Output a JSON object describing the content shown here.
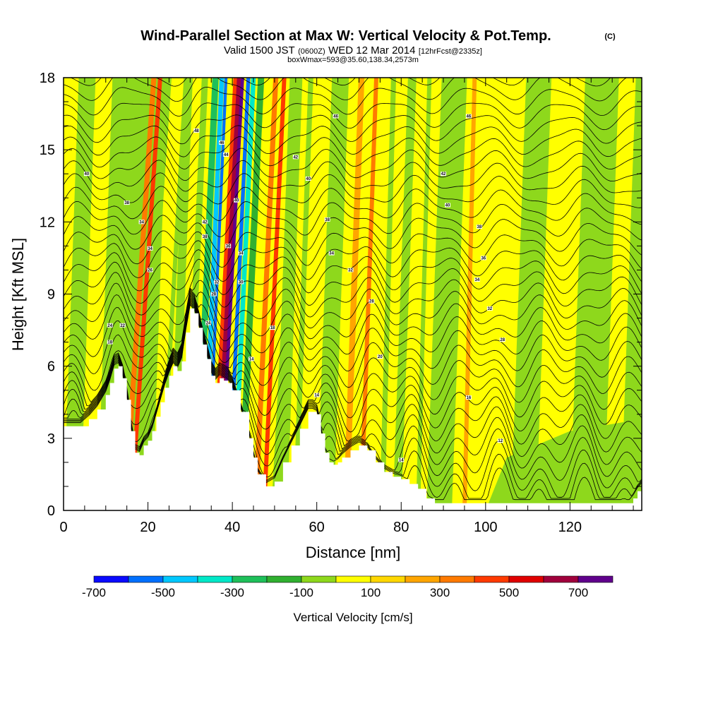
{
  "chart_data": {
    "type": "heatmap",
    "title": "Wind-Parallel Section at Max W: Vertical Velocity & Pot.Temp.",
    "title_mark": "(C)",
    "subtitle_prefix": "Valid 1500 JST",
    "subtitle_small1": "(0600Z)",
    "subtitle_mid": "WED 12 Mar 2014",
    "subtitle_small2": "[12hrFcst@2335z]",
    "subtitle2": "boxWmax=593@35.60,138.34,2573m",
    "xlabel": "Distance [nm]",
    "ylabel": "Height [Kft MSL]",
    "xlim": [
      0,
      137
    ],
    "ylim": [
      0,
      18
    ],
    "xticks": [
      0,
      20,
      40,
      60,
      80,
      100,
      120
    ],
    "yticks": [
      0,
      3,
      6,
      9,
      12,
      15,
      18
    ],
    "grid": false,
    "colorbar": {
      "title": "Vertical Velocity [cm/s]",
      "labels": [
        "-700",
        "-500",
        "-300",
        "-100",
        "100",
        "300",
        "500",
        "700"
      ],
      "colors": [
        "#0a0aff",
        "#0070ff",
        "#00c8ff",
        "#00e8c8",
        "#1ec05a",
        "#30b030",
        "#8ed81c",
        "#ffff00",
        "#ffd700",
        "#ffa500",
        "#ff7a00",
        "#ff3a00",
        "#e00000",
        "#a0003c",
        "#60008c"
      ]
    },
    "terrain_profile": {
      "x": [
        0,
        4,
        6,
        8,
        10,
        11,
        12,
        13,
        14,
        15,
        16,
        17,
        18,
        19,
        20,
        21,
        22,
        23,
        24,
        25,
        26,
        27,
        28,
        29,
        30,
        31,
        32,
        33,
        34,
        35,
        36,
        37,
        38,
        39,
        40,
        42,
        44,
        45,
        46,
        48,
        50,
        52,
        54,
        56,
        58,
        59,
        60,
        61,
        62,
        63,
        64,
        65,
        66,
        68,
        70,
        72,
        74,
        76,
        78,
        80,
        82,
        84,
        86,
        88,
        90,
        92,
        94,
        96,
        98,
        100,
        102,
        104,
        106,
        108,
        110,
        112,
        114,
        116,
        118,
        120,
        122,
        124,
        126,
        128,
        130,
        132,
        134,
        135,
        136,
        137
      ],
      "height": [
        3.5,
        3.5,
        3.8,
        4.2,
        4.8,
        5.3,
        5.9,
        6.0,
        5.5,
        4.6,
        3.3,
        2.4,
        2.3,
        2.7,
        2.9,
        3.3,
        3.9,
        4.5,
        5.1,
        5.6,
        6.0,
        5.8,
        6.2,
        7.4,
        8.4,
        8.2,
        7.6,
        6.9,
        6.3,
        5.6,
        5.3,
        5.5,
        5.4,
        5.3,
        5.0,
        4.1,
        3.0,
        2.2,
        1.5,
        1.0,
        1.2,
        2.0,
        2.7,
        3.4,
        4.1,
        4.1,
        4.0,
        3.2,
        2.4,
        2.0,
        1.9,
        2.0,
        2.2,
        2.5,
        2.7,
        2.5,
        2.0,
        1.6,
        1.4,
        1.3,
        1.1,
        0.9,
        0.5,
        0.3,
        0.3,
        0.3,
        0.3,
        0.3,
        0.3,
        0.3,
        0.3,
        0.3,
        0.3,
        0.3,
        0.3,
        0.3,
        0.3,
        0.3,
        0.3,
        0.3,
        0.3,
        0.3,
        0.3,
        0.3,
        0.3,
        0.3,
        0.3,
        0.5,
        0.8,
        1.0
      ]
    },
    "velocity_bands": [
      {
        "x": 12,
        "width": 1.2,
        "slope": 2.3,
        "value": -150
      },
      {
        "x": 14.5,
        "width": 1.2,
        "slope": 2.3,
        "value": 250
      },
      {
        "x": 16,
        "width": 1.0,
        "slope": 2.3,
        "value": 350
      },
      {
        "x": 18,
        "width": 1.4,
        "slope": 2.3,
        "value": -150
      },
      {
        "x": 23,
        "width": 1.0,
        "slope": 2.0,
        "value": -150
      },
      {
        "x": 29,
        "width": 1.5,
        "slope": 1.5,
        "value": -200
      },
      {
        "x": 31.5,
        "width": 1.5,
        "slope": 1.5,
        "value": -350
      },
      {
        "x": 33,
        "width": 1.1,
        "slope": 1.5,
        "value": -550
      },
      {
        "x": 34,
        "width": 0.7,
        "slope": 1.5,
        "value": -700
      },
      {
        "x": 35.3,
        "width": 0.9,
        "slope": 1.8,
        "value": 300
      },
      {
        "x": 36.2,
        "width": 1.0,
        "slope": 1.8,
        "value": 550
      },
      {
        "x": 37,
        "width": 0.8,
        "slope": 1.8,
        "value": 650
      },
      {
        "x": 39,
        "width": 0.9,
        "slope": 1.6,
        "value": -650
      },
      {
        "x": 40.2,
        "width": 1.1,
        "slope": 1.6,
        "value": -450
      },
      {
        "x": 42,
        "width": 1.5,
        "slope": 1.6,
        "value": -250
      },
      {
        "x": 45.5,
        "width": 1.2,
        "slope": 1.6,
        "value": 250
      },
      {
        "x": 47.5,
        "width": 1.0,
        "slope": 1.6,
        "value": 350
      },
      {
        "x": 50,
        "width": 1.5,
        "slope": 1.8,
        "value": -150
      },
      {
        "x": 55,
        "width": 1.2,
        "slope": 1.2,
        "value": -150
      },
      {
        "x": 62,
        "width": 1.0,
        "slope": 1.2,
        "value": -150
      },
      {
        "x": 67,
        "width": 1.4,
        "slope": 1.2,
        "value": 150
      },
      {
        "x": 70.5,
        "width": 1.0,
        "slope": 1.2,
        "value": 250
      },
      {
        "x": 75.5,
        "width": 1.2,
        "slope": 0.9,
        "value": -200
      },
      {
        "x": 84,
        "width": 1.0,
        "slope": 0.9,
        "value": -150
      },
      {
        "x": 95,
        "width": 1.0,
        "slope": 0.8,
        "value": 150
      }
    ],
    "contour_labels": [
      {
        "x": 5.5,
        "y": 14.0,
        "text": "40"
      },
      {
        "x": 15,
        "y": 12.8,
        "text": "38"
      },
      {
        "x": 18.5,
        "y": 12.0,
        "text": "34"
      },
      {
        "x": 20.5,
        "y": 10.9,
        "text": "34"
      },
      {
        "x": 20.5,
        "y": 10.0,
        "text": "26"
      },
      {
        "x": 11,
        "y": 7.7,
        "text": "24"
      },
      {
        "x": 14,
        "y": 7.7,
        "text": "22"
      },
      {
        "x": 11,
        "y": 7.0,
        "text": "18"
      },
      {
        "x": 31.5,
        "y": 15.8,
        "text": "48"
      },
      {
        "x": 33.5,
        "y": 12.0,
        "text": "42"
      },
      {
        "x": 33.5,
        "y": 11.4,
        "text": "38"
      },
      {
        "x": 37.5,
        "y": 15.3,
        "text": "46"
      },
      {
        "x": 38.5,
        "y": 14.8,
        "text": "44"
      },
      {
        "x": 39,
        "y": 11.0,
        "text": "36"
      },
      {
        "x": 41,
        "y": 12.9,
        "text": "40"
      },
      {
        "x": 42,
        "y": 10.7,
        "text": "34"
      },
      {
        "x": 42,
        "y": 9.5,
        "text": "30"
      },
      {
        "x": 36.3,
        "y": 9.5,
        "text": "32"
      },
      {
        "x": 35.6,
        "y": 9.0,
        "text": "28"
      },
      {
        "x": 34.3,
        "y": 7.8,
        "text": "24"
      },
      {
        "x": 49.5,
        "y": 7.6,
        "text": "18"
      },
      {
        "x": 44.5,
        "y": 6.3,
        "text": "14"
      },
      {
        "x": 55,
        "y": 14.7,
        "text": "42"
      },
      {
        "x": 58,
        "y": 13.8,
        "text": "40"
      },
      {
        "x": 62.5,
        "y": 12.1,
        "text": "38"
      },
      {
        "x": 63.5,
        "y": 10.7,
        "text": "34"
      },
      {
        "x": 68,
        "y": 10.0,
        "text": "32"
      },
      {
        "x": 73,
        "y": 8.7,
        "text": "28"
      },
      {
        "x": 75,
        "y": 6.4,
        "text": "20"
      },
      {
        "x": 60,
        "y": 4.8,
        "text": "14"
      },
      {
        "x": 64.5,
        "y": 16.4,
        "text": "46"
      },
      {
        "x": 96,
        "y": 16.4,
        "text": "46"
      },
      {
        "x": 90,
        "y": 14.0,
        "text": "42"
      },
      {
        "x": 91,
        "y": 12.7,
        "text": "40"
      },
      {
        "x": 98.5,
        "y": 11.8,
        "text": "38"
      },
      {
        "x": 99.5,
        "y": 10.5,
        "text": "36"
      },
      {
        "x": 98,
        "y": 9.6,
        "text": "34"
      },
      {
        "x": 101,
        "y": 8.4,
        "text": "32"
      },
      {
        "x": 104,
        "y": 7.1,
        "text": "28"
      },
      {
        "x": 96,
        "y": 4.7,
        "text": "16"
      },
      {
        "x": 80,
        "y": 2.1,
        "text": "14"
      },
      {
        "x": 103.5,
        "y": 2.9,
        "text": "12"
      }
    ]
  }
}
